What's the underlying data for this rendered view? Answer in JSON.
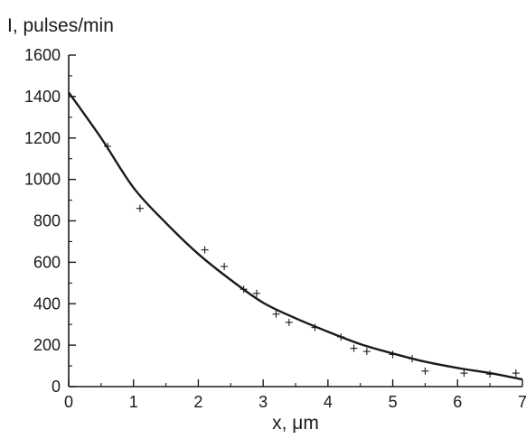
{
  "chart_data": {
    "type": "scatter",
    "title": "",
    "xlabel": "x, μm",
    "ylabel": "I, pulses/min",
    "xlim": [
      0,
      7
    ],
    "ylim": [
      0,
      1600
    ],
    "x_ticks": [
      0,
      1,
      2,
      3,
      4,
      5,
      6,
      7
    ],
    "y_ticks": [
      0,
      200,
      400,
      600,
      800,
      1000,
      1200,
      1400,
      1600
    ],
    "grid": false,
    "legend": "none",
    "series": [
      {
        "kind": "scatter",
        "marker": "+",
        "x": [
          0.6,
          1.1,
          2.1,
          2.4,
          2.7,
          2.9,
          3.2,
          3.4,
          3.8,
          4.2,
          4.4,
          4.6,
          5.0,
          5.3,
          5.5,
          6.1,
          6.5,
          6.9
        ],
        "y": [
          1160,
          860,
          660,
          580,
          470,
          450,
          350,
          310,
          285,
          240,
          185,
          170,
          155,
          135,
          75,
          65,
          60,
          65
        ]
      },
      {
        "kind": "line",
        "x": [
          0,
          0.5,
          1,
          1.5,
          2,
          2.5,
          3,
          3.5,
          4,
          4.5,
          5,
          5.5,
          6,
          6.5,
          7
        ],
        "y": [
          1420,
          1200,
          960,
          790,
          640,
          515,
          405,
          330,
          265,
          205,
          160,
          120,
          90,
          65,
          35
        ]
      }
    ]
  }
}
